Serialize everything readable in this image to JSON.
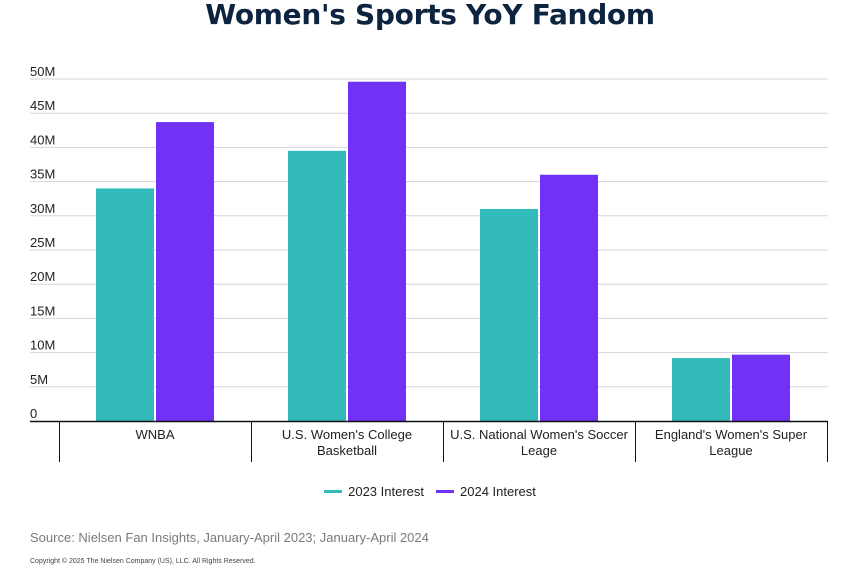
{
  "chart_data": {
    "type": "bar",
    "title": "Women's Sports YoY Fandom",
    "categories": [
      [
        "WNBA"
      ],
      [
        "U.S. Women's College",
        "Basketball"
      ],
      [
        "U.S. National Women's Soccer",
        "Leage"
      ],
      [
        "England's Women's Super",
        "League"
      ]
    ],
    "series": [
      {
        "name": "2023 Interest",
        "color": "#33bbbb",
        "values": [
          34,
          39.5,
          31,
          9.2
        ]
      },
      {
        "name": "2024 Interest",
        "color": "#7032f5",
        "values": [
          43.7,
          49.6,
          36,
          9.7
        ]
      }
    ],
    "ylim": [
      0,
      50
    ],
    "yticks": [
      0,
      5,
      10,
      15,
      20,
      25,
      30,
      35,
      40,
      45,
      50
    ],
    "ytick_labels": [
      "0",
      "5M",
      "10M",
      "15M",
      "20M",
      "25M",
      "30M",
      "35M",
      "40M",
      "45M",
      "50M"
    ],
    "grid": true,
    "legend_position": "bottom-center"
  },
  "source": "Source: Nielsen Fan Insights, January-April 2023; January-April 2024",
  "copyright": "Copyright © 2025 The Nielsen Company (US), LLC. All Rights Reserved."
}
